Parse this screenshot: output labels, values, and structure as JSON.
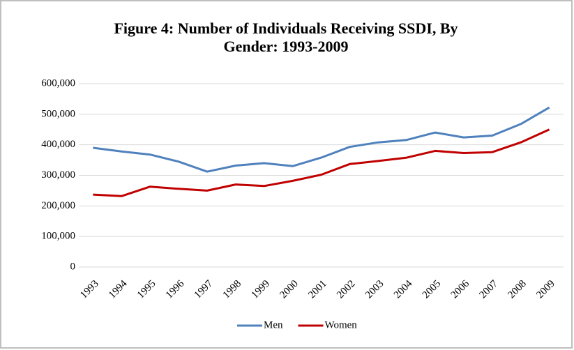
{
  "chart_data": {
    "type": "line",
    "title": "Figure 4: Number of Individuals Receiving SSDI, By Gender: 1993-2009",
    "categories": [
      "1993",
      "1994",
      "1995",
      "1996",
      "1997",
      "1998",
      "1999",
      "2000",
      "2001",
      "2002",
      "2003",
      "2004",
      "2005",
      "2006",
      "2007",
      "2008",
      "2009"
    ],
    "series": [
      {
        "name": "Men",
        "color": "#4f81bd",
        "values": [
          390000,
          378000,
          368000,
          345000,
          312000,
          332000,
          340000,
          330000,
          358000,
          393000,
          408000,
          416000,
          440000,
          424000,
          430000,
          468000,
          522000
        ]
      },
      {
        "name": "Women",
        "color": "#c00000",
        "values": [
          237000,
          232000,
          263000,
          256000,
          250000,
          270000,
          265000,
          282000,
          302000,
          337000,
          347000,
          358000,
          380000,
          373000,
          376000,
          408000,
          450000
        ]
      }
    ],
    "ylim": [
      0,
      600000
    ],
    "yticks": [
      0,
      {
        "value": 100000,
        "label": "100,000"
      },
      {
        "value": 200000,
        "label": "200,000"
      },
      {
        "value": 300000,
        "label": "300,000"
      },
      {
        "value": 400000,
        "label": "400,000"
      },
      {
        "value": 500000,
        "label": "500,000"
      },
      {
        "value": 600000,
        "label": "600,000"
      }
    ],
    "grid": true,
    "legend": "bottom"
  }
}
